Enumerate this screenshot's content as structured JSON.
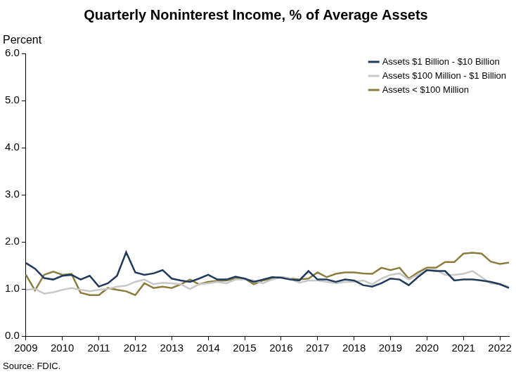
{
  "chart_data": {
    "type": "line",
    "title": "Quarterly Noninterest Income, % of Average Assets",
    "y_label": "Percent",
    "source": "Source: FDIC.",
    "categories": [
      "2009",
      null,
      null,
      null,
      "2010",
      null,
      null,
      null,
      "2011",
      null,
      null,
      null,
      "2012",
      null,
      null,
      null,
      "2013",
      null,
      null,
      null,
      "2014",
      null,
      null,
      null,
      "2015",
      null,
      null,
      null,
      "2016",
      null,
      null,
      null,
      "2017",
      null,
      null,
      null,
      "2018",
      null,
      null,
      null,
      "2019",
      null,
      null,
      null,
      "2020",
      null,
      null,
      null,
      "2021",
      null,
      null,
      null,
      "2022",
      null
    ],
    "series": [
      {
        "name": "Assets $1 Billion - $10 Billion",
        "color": "#1f3a5c",
        "values": [
          1.55,
          1.43,
          1.23,
          1.2,
          1.28,
          1.3,
          1.2,
          1.28,
          1.05,
          1.12,
          1.28,
          1.78,
          1.35,
          1.3,
          1.33,
          1.4,
          1.22,
          1.18,
          1.15,
          1.22,
          1.3,
          1.2,
          1.2,
          1.26,
          1.22,
          1.15,
          1.2,
          1.25,
          1.24,
          1.2,
          1.18,
          1.38,
          1.2,
          1.2,
          1.15,
          1.2,
          1.18,
          1.08,
          1.05,
          1.12,
          1.22,
          1.2,
          1.08,
          1.25,
          1.4,
          1.38,
          1.38,
          1.18,
          1.2,
          1.2,
          1.18,
          1.15,
          1.1,
          1.02
        ]
      },
      {
        "name": "Assets $100 Million - $1 Billion",
        "color": "#c8c8c8",
        "values": [
          0.98,
          1.0,
          0.9,
          0.93,
          0.98,
          1.02,
          0.98,
          0.95,
          0.98,
          1.0,
          1.05,
          1.07,
          1.15,
          1.2,
          1.1,
          1.13,
          1.12,
          1.1,
          1.0,
          1.1,
          1.12,
          1.15,
          1.12,
          1.2,
          1.2,
          1.18,
          1.12,
          1.2,
          1.25,
          1.22,
          1.13,
          1.18,
          1.18,
          1.15,
          1.12,
          1.15,
          1.15,
          1.18,
          1.1,
          1.22,
          1.3,
          1.33,
          1.2,
          1.3,
          1.4,
          1.4,
          1.3,
          1.3,
          1.32,
          1.38,
          1.25,
          1.12,
          1.1,
          1.05
        ]
      },
      {
        "name": "Assets < $100 Million",
        "color": "#8c7d3e",
        "values": [
          1.3,
          0.97,
          1.3,
          1.37,
          1.3,
          1.32,
          0.92,
          0.87,
          0.87,
          1.02,
          0.98,
          0.95,
          0.87,
          1.12,
          1.02,
          1.05,
          1.02,
          1.1,
          1.2,
          1.1,
          1.15,
          1.17,
          1.18,
          1.22,
          1.22,
          1.1,
          1.18,
          1.22,
          1.25,
          1.22,
          1.2,
          1.22,
          1.35,
          1.25,
          1.32,
          1.35,
          1.35,
          1.33,
          1.32,
          1.45,
          1.4,
          1.45,
          1.22,
          1.35,
          1.45,
          1.45,
          1.57,
          1.57,
          1.75,
          1.77,
          1.75,
          1.58,
          1.53,
          1.56
        ]
      }
    ],
    "ylim": [
      0,
      6
    ],
    "yticks": [
      {
        "value": 0,
        "label": "0.0"
      },
      {
        "value": 1,
        "label": "1.0"
      },
      {
        "value": 2,
        "label": "2.0"
      },
      {
        "value": 3,
        "label": "3.0"
      },
      {
        "value": 4,
        "label": "4.0"
      },
      {
        "value": 5,
        "label": "5.0"
      },
      {
        "value": 6,
        "label": "6.0"
      }
    ],
    "grid": false,
    "legend": "top-right"
  }
}
